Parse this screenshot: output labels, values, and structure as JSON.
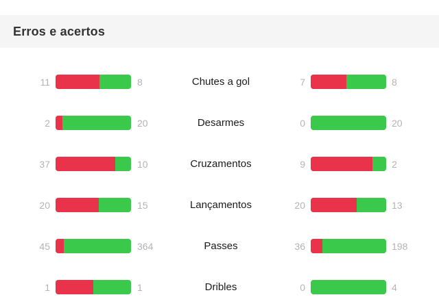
{
  "panel": {
    "title": "Erros e acertos"
  },
  "colors": {
    "error": "#e8334a",
    "success": "#3ac94a",
    "muted_number": "#b3b3b3",
    "header_bg": "#f5f5f5"
  },
  "stats": [
    {
      "label": "Chutes a gol",
      "home": {
        "errors": "11",
        "successes": "8",
        "error_fraction": 0.58
      },
      "away": {
        "errors": "7",
        "successes": "8",
        "error_fraction": 0.47
      }
    },
    {
      "label": "Desarmes",
      "home": {
        "errors": "2",
        "successes": "20",
        "error_fraction": 0.09
      },
      "away": {
        "errors": "0",
        "successes": "20",
        "error_fraction": 0
      }
    },
    {
      "label": "Cruzamentos",
      "home": {
        "errors": "37",
        "successes": "10",
        "error_fraction": 0.79
      },
      "away": {
        "errors": "9",
        "successes": "2",
        "error_fraction": 0.82
      }
    },
    {
      "label": "Lançamentos",
      "home": {
        "errors": "20",
        "successes": "15",
        "error_fraction": 0.57
      },
      "away": {
        "errors": "20",
        "successes": "13",
        "error_fraction": 0.61
      }
    },
    {
      "label": "Passes",
      "home": {
        "errors": "45",
        "successes": "364",
        "error_fraction": 0.11
      },
      "away": {
        "errors": "36",
        "successes": "198",
        "error_fraction": 0.15
      }
    },
    {
      "label": "Dribles",
      "home": {
        "errors": "1",
        "successes": "1",
        "error_fraction": 0.5
      },
      "away": {
        "errors": "0",
        "successes": "4",
        "error_fraction": 0
      }
    }
  ]
}
